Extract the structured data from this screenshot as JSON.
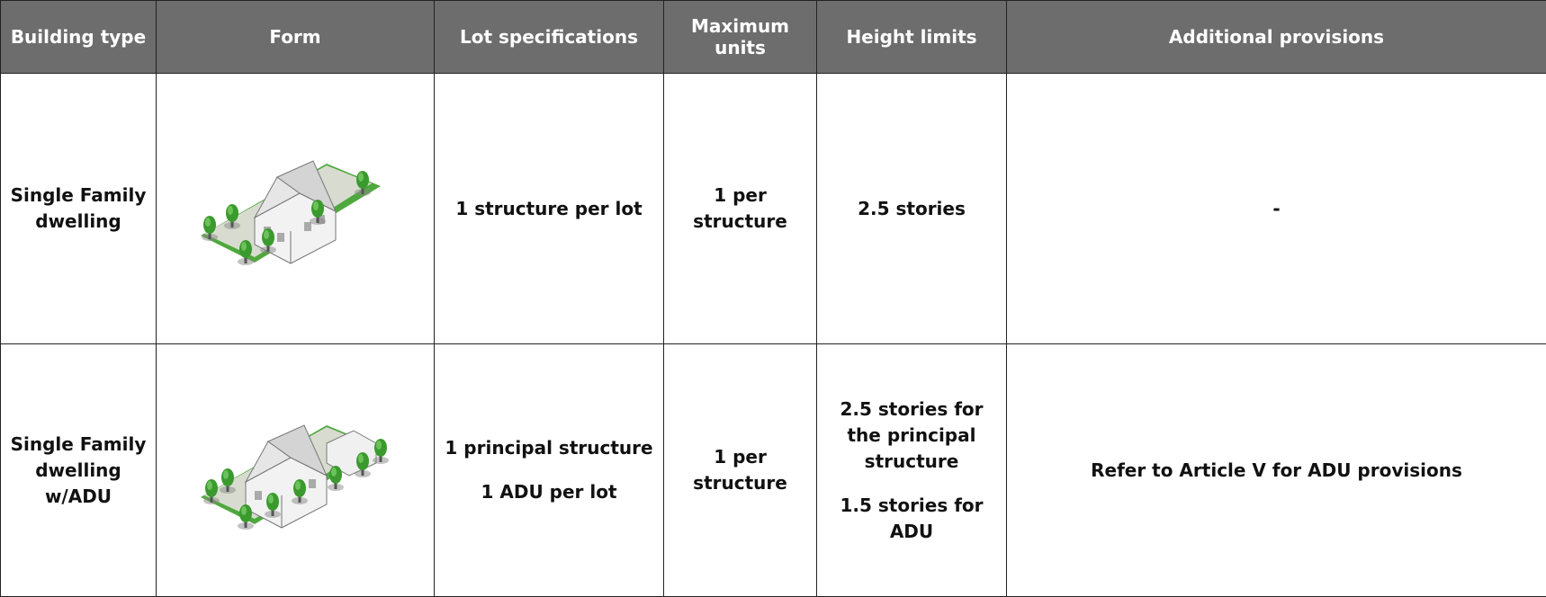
{
  "table": {
    "header": [
      "Building type",
      "Form",
      "Lot specifications",
      "Maximum units",
      "Height limits",
      "Additional provisions"
    ],
    "rows": [
      {
        "building_type": "Single Family dwelling",
        "lot_specifications": [
          "1 structure per lot"
        ],
        "maximum_units": "1 per structure",
        "height_limits": [
          "2.5 stories"
        ],
        "additional_provisions": "-"
      },
      {
        "building_type": "Single Family dwelling w/ADU",
        "lot_specifications": [
          "1 principal structure",
          "1 ADU per lot"
        ],
        "maximum_units": "1 per structure",
        "height_limits": [
          "2.5 stories for the principal structure",
          "1.5 stories for ADU"
        ],
        "additional_provisions": "Refer to Article V for ADU provisions"
      }
    ]
  }
}
